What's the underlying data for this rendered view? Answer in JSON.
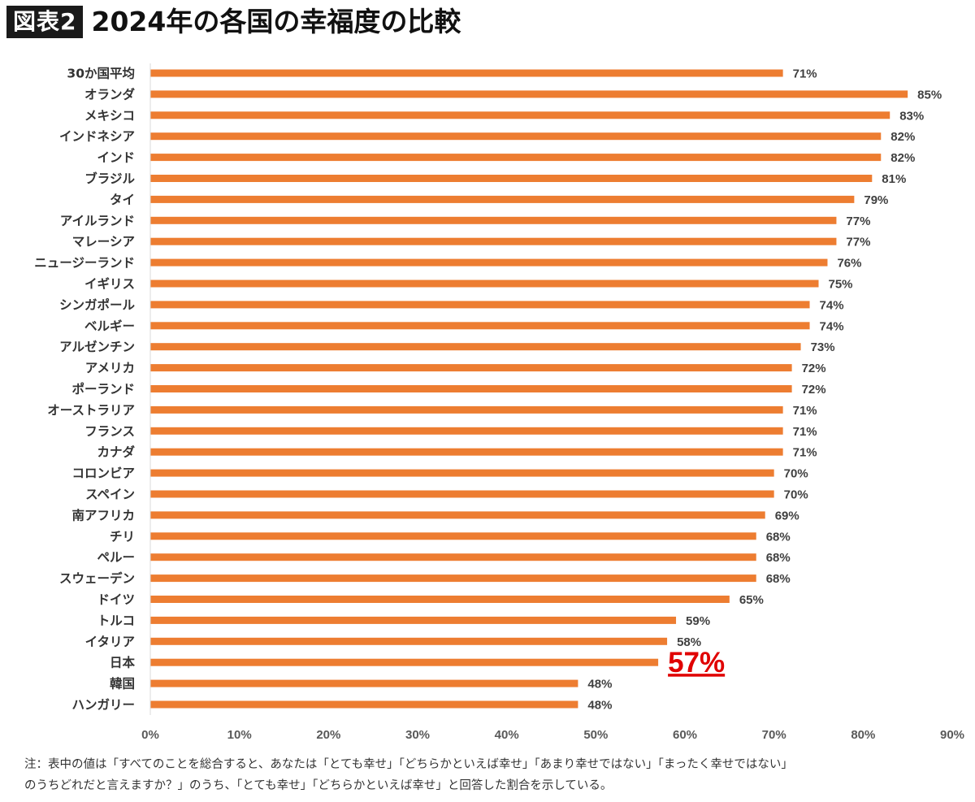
{
  "header": {
    "badge": "図表2",
    "title": "2024年の各国の幸福度の比較"
  },
  "chart_data": {
    "type": "bar",
    "orientation": "horizontal",
    "categories": [
      "30か国平均",
      "オランダ",
      "メキシコ",
      "インドネシア",
      "インド",
      "ブラジル",
      "タイ",
      "アイルランド",
      "マレーシア",
      "ニュージーランド",
      "イギリス",
      "シンガポール",
      "ベルギー",
      "アルゼンチン",
      "アメリカ",
      "ポーランド",
      "オーストラリア",
      "フランス",
      "カナダ",
      "コロンビア",
      "スペイン",
      "南アフリカ",
      "チリ",
      "ペルー",
      "スウェーデン",
      "ドイツ",
      "トルコ",
      "イタリア",
      "日本",
      "韓国",
      "ハンガリー"
    ],
    "values": [
      71,
      85,
      83,
      82,
      82,
      81,
      79,
      77,
      77,
      76,
      75,
      74,
      74,
      73,
      72,
      72,
      71,
      71,
      71,
      70,
      70,
      69,
      68,
      68,
      68,
      65,
      59,
      58,
      57,
      48,
      48
    ],
    "data_labels": [
      "71%",
      "85%",
      "83%",
      "82%",
      "82%",
      "81%",
      "79%",
      "77%",
      "77%",
      "76%",
      "75%",
      "74%",
      "74%",
      "73%",
      "72%",
      "72%",
      "71%",
      "71%",
      "71%",
      "70%",
      "70%",
      "69%",
      "68%",
      "68%",
      "68%",
      "65%",
      "59%",
      "58%",
      "57%",
      "48%",
      "48%"
    ],
    "highlight_category": "日本",
    "highlight_color": "#e00000",
    "bar_color": "#ed7d31",
    "xlim": [
      0,
      90
    ],
    "x_ticks": [
      "0%",
      "10%",
      "20%",
      "30%",
      "40%",
      "50%",
      "60%",
      "70%",
      "80%",
      "90%"
    ],
    "grid": false,
    "legend": "none"
  },
  "footnote": {
    "line1": "注：表中の値は「すべてのことを総合すると、あなたは「とても幸せ」「どちらかといえば幸せ」「あまり幸せではない」「まったく幸せではない」",
    "line2": "のうちどれだと言えますか？」のうち、「とても幸せ」「どちらかといえば幸せ」と回答した割合を示している。"
  }
}
